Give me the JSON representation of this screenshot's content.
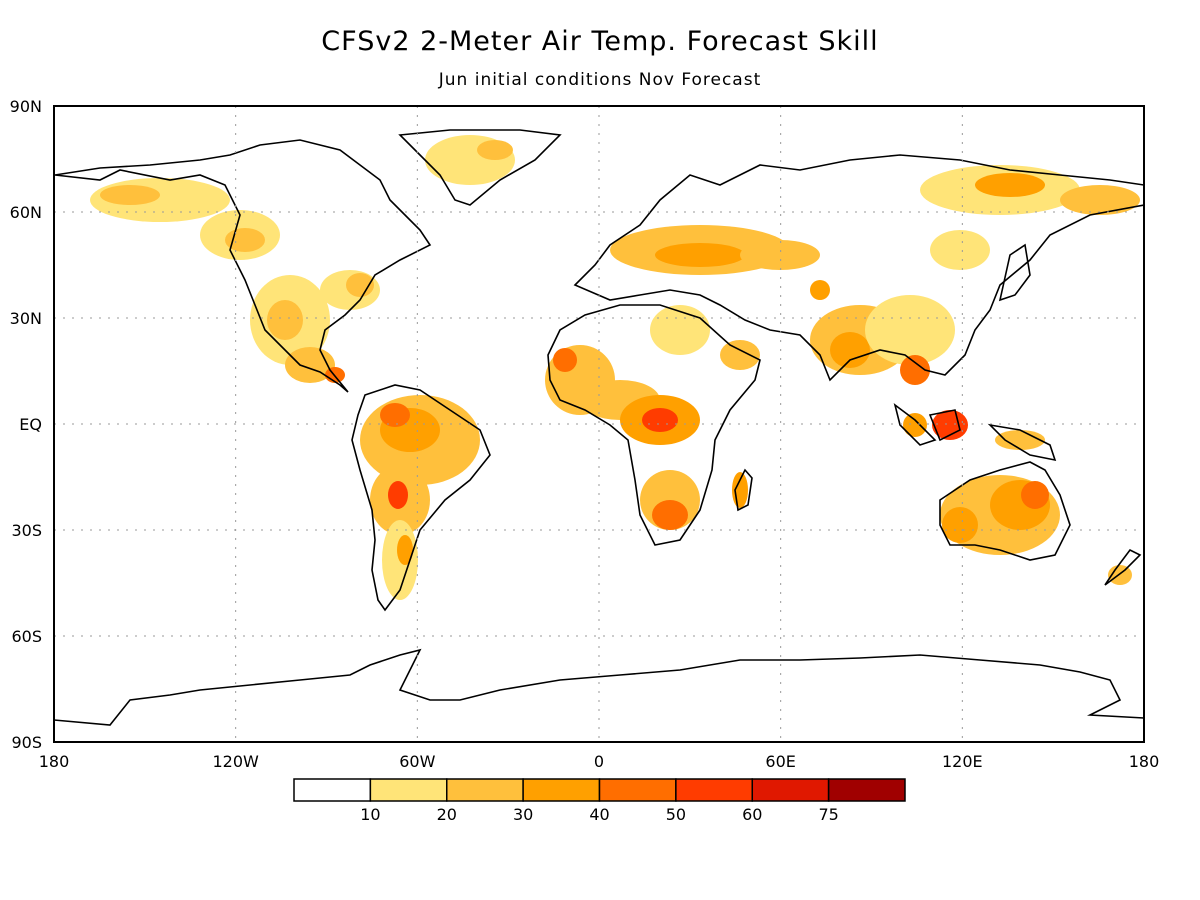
{
  "title": "CFSv2 2-Meter Air Temp. Forecast Skill",
  "subtitle": "Jun initial conditions   Nov Forecast",
  "lat_labels": [
    "90N",
    "60N",
    "30N",
    "EQ",
    "30S",
    "60S",
    "90S"
  ],
  "lon_labels": [
    "180",
    "120W",
    "60W",
    "0",
    "60E",
    "120E",
    "180"
  ],
  "colorbar": {
    "tick_labels": [
      "10",
      "20",
      "30",
      "40",
      "50",
      "60",
      "75"
    ],
    "colors": [
      "#ffffff",
      "#ffe478",
      "#ffc03c",
      "#ffa000",
      "#ff6e00",
      "#ff3c00",
      "#e01800",
      "#a00000"
    ]
  },
  "colors": {
    "coastline": "#000000",
    "grid": "#9a9a9a"
  }
}
